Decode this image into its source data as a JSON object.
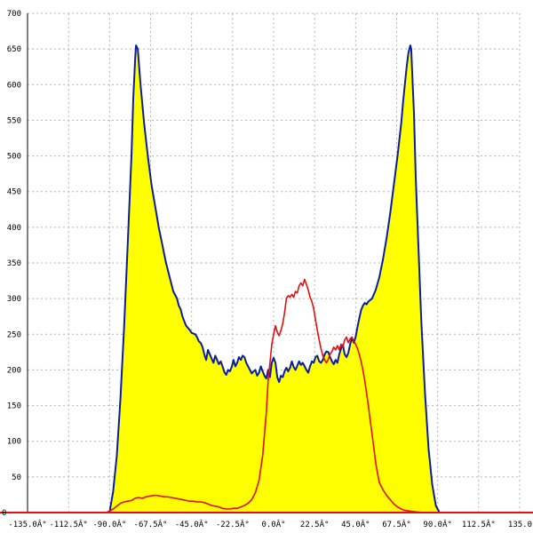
{
  "chart_data": {
    "type": "area",
    "grid": true,
    "xlim": [
      -135,
      135
    ],
    "ylim": [
      0,
      700
    ],
    "x_ticks": [
      -135,
      -112.5,
      -90,
      -67.5,
      -45,
      -22.5,
      0,
      22.5,
      45,
      67.5,
      90,
      112.5,
      135
    ],
    "x_tick_labels": [
      "-135.0Â°",
      "-112.5Â°",
      "-90.0Â°",
      "-67.5Â°",
      "-45.0Â°",
      "-22.5Â°",
      "0.0Â°",
      "22.5Â°",
      "45.0Â°",
      "67.5Â°",
      "90.0Â°",
      "112.5Â°",
      "135.0"
    ],
    "y_ticks": [
      50,
      100,
      150,
      200,
      250,
      300,
      350,
      400,
      450,
      500,
      550,
      600,
      650,
      700
    ],
    "y_tick_labels": [
      "50",
      "100",
      "150",
      "200",
      "250",
      "300",
      "350",
      "400",
      "450",
      "500",
      "550",
      "600",
      "650",
      "700"
    ],
    "zero_label": "0",
    "colors": {
      "fill": "#ffff00",
      "outline": "#0a1e9b",
      "overlay": "#e01010",
      "baseline": "#e01010",
      "axis": "#000000"
    },
    "series": [
      {
        "style": "filled-area",
        "points": [
          [
            -90,
            0
          ],
          [
            -88,
            30
          ],
          [
            -86,
            80
          ],
          [
            -84,
            160
          ],
          [
            -82,
            260
          ],
          [
            -80,
            380
          ],
          [
            -78,
            500
          ],
          [
            -77,
            580
          ],
          [
            -76,
            635
          ],
          [
            -75.5,
            655
          ],
          [
            -74.5,
            650
          ],
          [
            -73,
            600
          ],
          [
            -71,
            545
          ],
          [
            -69,
            500
          ],
          [
            -67,
            460
          ],
          [
            -65,
            430
          ],
          [
            -63,
            400
          ],
          [
            -61,
            375
          ],
          [
            -59,
            350
          ],
          [
            -57,
            330
          ],
          [
            -55,
            310
          ],
          [
            -53,
            300
          ],
          [
            -52,
            290
          ],
          [
            -51,
            285
          ],
          [
            -50,
            275
          ],
          [
            -49,
            268
          ],
          [
            -48,
            262
          ],
          [
            -46,
            256
          ],
          [
            -45,
            252
          ],
          [
            -43,
            250
          ],
          [
            -42,
            246
          ],
          [
            -41,
            240
          ],
          [
            -40,
            238
          ],
          [
            -39,
            232
          ],
          [
            -38,
            222
          ],
          [
            -37,
            214
          ],
          [
            -36,
            228
          ],
          [
            -35,
            222
          ],
          [
            -34,
            216
          ],
          [
            -33,
            210
          ],
          [
            -32,
            220
          ],
          [
            -31,
            214
          ],
          [
            -30,
            208
          ],
          [
            -29,
            212
          ],
          [
            -28,
            205
          ],
          [
            -27,
            197
          ],
          [
            -26,
            193
          ],
          [
            -25,
            200
          ],
          [
            -24,
            198
          ],
          [
            -23,
            204
          ],
          [
            -22,
            214
          ],
          [
            -21,
            205
          ],
          [
            -20,
            210
          ],
          [
            -19,
            218
          ],
          [
            -18,
            214
          ],
          [
            -17,
            220
          ],
          [
            -16,
            218
          ],
          [
            -15,
            210
          ],
          [
            -14,
            205
          ],
          [
            -13,
            200
          ],
          [
            -12,
            195
          ],
          [
            -11,
            198
          ],
          [
            -10,
            200
          ],
          [
            -9,
            192
          ],
          [
            -8,
            196
          ],
          [
            -7,
            205
          ],
          [
            -6,
            198
          ],
          [
            -5,
            192
          ],
          [
            -4,
            188
          ],
          [
            -3,
            200
          ],
          [
            -2,
            190
          ],
          [
            -1,
            210
          ],
          [
            0,
            217
          ],
          [
            1,
            210
          ],
          [
            2,
            190
          ],
          [
            3,
            183
          ],
          [
            4,
            192
          ],
          [
            5,
            190
          ],
          [
            6,
            198
          ],
          [
            7,
            203
          ],
          [
            8,
            198
          ],
          [
            9,
            203
          ],
          [
            10,
            212
          ],
          [
            11,
            204
          ],
          [
            12,
            200
          ],
          [
            13,
            206
          ],
          [
            14,
            212
          ],
          [
            15,
            207
          ],
          [
            16,
            210
          ],
          [
            17,
            205
          ],
          [
            18,
            200
          ],
          [
            19,
            196
          ],
          [
            20,
            205
          ],
          [
            21,
            212
          ],
          [
            22,
            210
          ],
          [
            23,
            218
          ],
          [
            24,
            220
          ],
          [
            25,
            212
          ],
          [
            26,
            210
          ],
          [
            27,
            214
          ],
          [
            28,
            222
          ],
          [
            29,
            226
          ],
          [
            30,
            225
          ],
          [
            31,
            218
          ],
          [
            32,
            212
          ],
          [
            33,
            208
          ],
          [
            34,
            214
          ],
          [
            35,
            210
          ],
          [
            36,
            222
          ],
          [
            37,
            230
          ],
          [
            38,
            235
          ],
          [
            39,
            222
          ],
          [
            40,
            218
          ],
          [
            41,
            224
          ],
          [
            42,
            236
          ],
          [
            43,
            245
          ],
          [
            44,
            238
          ],
          [
            45,
            246
          ],
          [
            46,
            260
          ],
          [
            47,
            272
          ],
          [
            48,
            284
          ],
          [
            49,
            290
          ],
          [
            50,
            294
          ],
          [
            51,
            292
          ],
          [
            52,
            296
          ],
          [
            54,
            300
          ],
          [
            56,
            312
          ],
          [
            58,
            330
          ],
          [
            60,
            355
          ],
          [
            62,
            385
          ],
          [
            64,
            420
          ],
          [
            66,
            460
          ],
          [
            68,
            500
          ],
          [
            70,
            545
          ],
          [
            71,
            575
          ],
          [
            72,
            600
          ],
          [
            73,
            625
          ],
          [
            74,
            645
          ],
          [
            75,
            655
          ],
          [
            75.5,
            650
          ],
          [
            76,
            620
          ],
          [
            77,
            560
          ],
          [
            78,
            470
          ],
          [
            79.5,
            370
          ],
          [
            81,
            270
          ],
          [
            83,
            170
          ],
          [
            85,
            90
          ],
          [
            87,
            40
          ],
          [
            89,
            10
          ],
          [
            91,
            0
          ]
        ]
      },
      {
        "style": "line",
        "points": [
          [
            -92,
            0
          ],
          [
            -90,
            2
          ],
          [
            -88,
            5
          ],
          [
            -86,
            9
          ],
          [
            -84,
            13
          ],
          [
            -82,
            15
          ],
          [
            -80,
            16
          ],
          [
            -78,
            17
          ],
          [
            -76,
            20
          ],
          [
            -74,
            21
          ],
          [
            -72,
            20
          ],
          [
            -70,
            22
          ],
          [
            -68,
            23
          ],
          [
            -66,
            24
          ],
          [
            -64,
            24
          ],
          [
            -62,
            23
          ],
          [
            -60,
            22
          ],
          [
            -58,
            22
          ],
          [
            -56,
            21
          ],
          [
            -54,
            20
          ],
          [
            -52,
            19
          ],
          [
            -50,
            18
          ],
          [
            -48,
            17
          ],
          [
            -46,
            16
          ],
          [
            -44,
            16
          ],
          [
            -42,
            15
          ],
          [
            -40,
            15
          ],
          [
            -38,
            14
          ],
          [
            -36,
            12
          ],
          [
            -34,
            10
          ],
          [
            -32,
            9
          ],
          [
            -30,
            8
          ],
          [
            -28,
            6
          ],
          [
            -26,
            5
          ],
          [
            -24,
            5
          ],
          [
            -22,
            6
          ],
          [
            -20,
            6
          ],
          [
            -18,
            8
          ],
          [
            -16,
            10
          ],
          [
            -14,
            13
          ],
          [
            -12,
            18
          ],
          [
            -10,
            28
          ],
          [
            -8,
            45
          ],
          [
            -6,
            80
          ],
          [
            -4,
            140
          ],
          [
            -3,
            185
          ],
          [
            -2,
            210
          ],
          [
            -1,
            235
          ],
          [
            0,
            250
          ],
          [
            1,
            262
          ],
          [
            2,
            253
          ],
          [
            3,
            248
          ],
          [
            4,
            255
          ],
          [
            5,
            265
          ],
          [
            6,
            280
          ],
          [
            7,
            300
          ],
          [
            8,
            304
          ],
          [
            9,
            302
          ],
          [
            10,
            306
          ],
          [
            11,
            302
          ],
          [
            12,
            310
          ],
          [
            13,
            308
          ],
          [
            14,
            318
          ],
          [
            15,
            322
          ],
          [
            16,
            318
          ],
          [
            17,
            327
          ],
          [
            18,
            320
          ],
          [
            19,
            312
          ],
          [
            20,
            302
          ],
          [
            21,
            296
          ],
          [
            22,
            286
          ],
          [
            23,
            270
          ],
          [
            24,
            256
          ],
          [
            25,
            242
          ],
          [
            26,
            230
          ],
          [
            27,
            220
          ],
          [
            28,
            214
          ],
          [
            29,
            210
          ],
          [
            30,
            215
          ],
          [
            31,
            222
          ],
          [
            32,
            226
          ],
          [
            33,
            232
          ],
          [
            34,
            228
          ],
          [
            35,
            234
          ],
          [
            36,
            228
          ],
          [
            37,
            236
          ],
          [
            38,
            232
          ],
          [
            39,
            242
          ],
          [
            40,
            246
          ],
          [
            41,
            238
          ],
          [
            42,
            244
          ],
          [
            43,
            246
          ],
          [
            44,
            240
          ],
          [
            45,
            236
          ],
          [
            46,
            230
          ],
          [
            47,
            222
          ],
          [
            48,
            212
          ],
          [
            49,
            200
          ],
          [
            50,
            185
          ],
          [
            51,
            168
          ],
          [
            52,
            150
          ],
          [
            53,
            130
          ],
          [
            54,
            110
          ],
          [
            55,
            90
          ],
          [
            56,
            70
          ],
          [
            57,
            55
          ],
          [
            58,
            42
          ],
          [
            60,
            32
          ],
          [
            62,
            24
          ],
          [
            64,
            18
          ],
          [
            66,
            12
          ],
          [
            68,
            8
          ],
          [
            70,
            5
          ],
          [
            72,
            3
          ],
          [
            75,
            2
          ],
          [
            78,
            1
          ],
          [
            82,
            0
          ]
        ]
      }
    ]
  }
}
